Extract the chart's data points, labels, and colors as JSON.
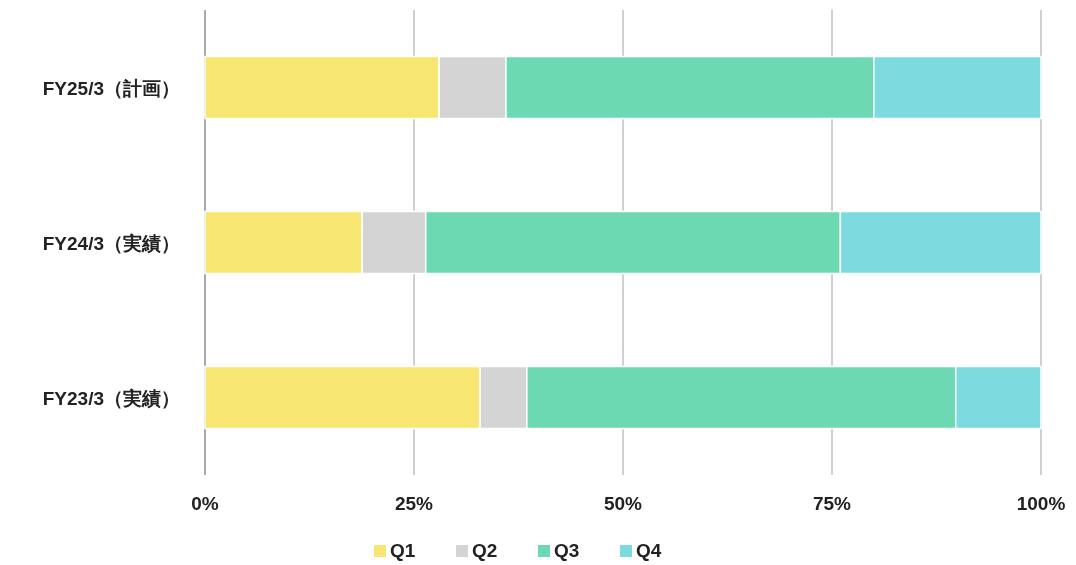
{
  "chart_data": {
    "type": "bar",
    "orientation": "horizontal",
    "stacked": true,
    "categories": [
      "FY25/3（計画）",
      "FY24/3（実績）",
      "FY23/3（実績）"
    ],
    "series": [
      {
        "name": "Q1",
        "color": "#f7e672",
        "values": [
          28,
          18.8,
          32.9
        ]
      },
      {
        "name": "Q2",
        "color": "#d4d4d4",
        "values": [
          8,
          7.6,
          5.6
        ]
      },
      {
        "name": "Q3",
        "color": "#6dd9b2",
        "values": [
          44,
          49.6,
          51.3
        ]
      },
      {
        "name": "Q4",
        "color": "#7ddbe0",
        "values": [
          20,
          24.0,
          10.2
        ]
      }
    ],
    "xlim": [
      0,
      100
    ],
    "xticks": [
      {
        "value": 0,
        "label": "0%"
      },
      {
        "value": 25,
        "label": "25%"
      },
      {
        "value": 50,
        "label": "50%"
      },
      {
        "value": 75,
        "label": "75%"
      },
      {
        "value": 100,
        "label": "100%"
      }
    ],
    "grid": "x",
    "legend": "bottom"
  }
}
